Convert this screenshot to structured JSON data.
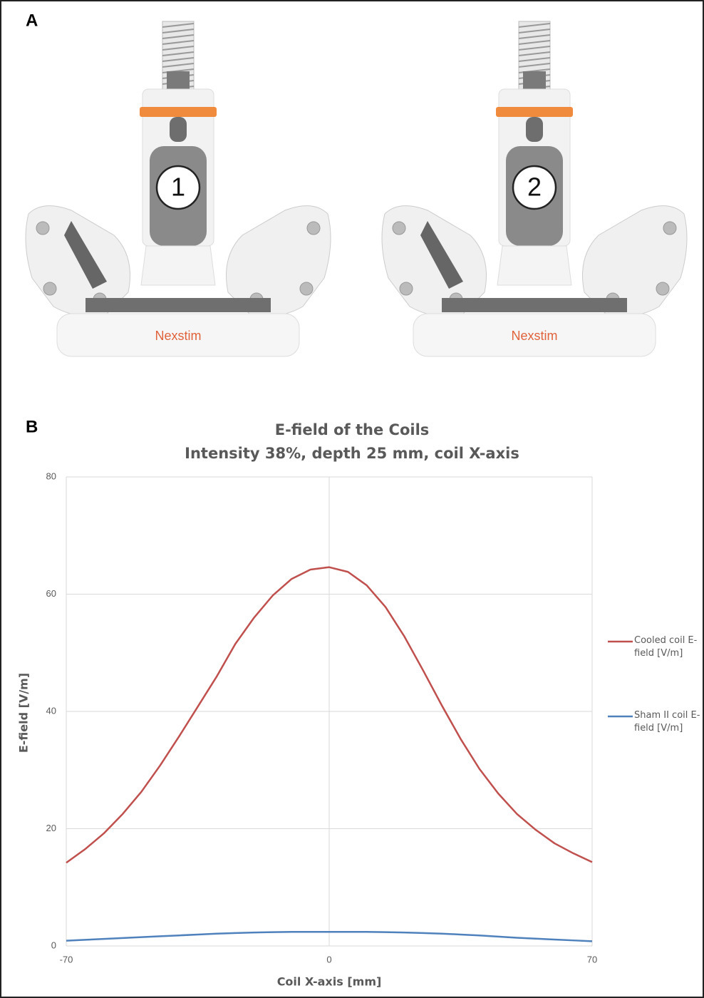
{
  "panel_a": {
    "label": "A",
    "coils": [
      {
        "number": "1",
        "brand": "Nexstim"
      },
      {
        "number": "2",
        "brand": "Nexstim"
      }
    ]
  },
  "panel_b": {
    "label": "B"
  },
  "chart_data": {
    "type": "line",
    "title": "E-field of the Coils",
    "subtitle": "Intensity 38%, depth 25 mm, coil X-axis",
    "x_label": "Coil X-axis [mm]",
    "y_label": "E-field [V/m]",
    "x": [
      -70,
      -65,
      -60,
      -55,
      -50,
      -45,
      -40,
      -35,
      -30,
      -25,
      -20,
      -15,
      -10,
      -5,
      0,
      5,
      10,
      15,
      20,
      25,
      30,
      35,
      40,
      45,
      50,
      55,
      60,
      65,
      70
    ],
    "series": [
      {
        "name": "Cooled coil E-field [V/m]",
        "color": "#c0504d",
        "values": [
          14.2,
          16.5,
          19.2,
          22.5,
          26.3,
          30.8,
          35.7,
          40.8,
          45.9,
          51.5,
          56,
          59.8,
          62.6,
          64.2,
          64.6,
          63.8,
          61.5,
          57.8,
          52.8,
          47,
          41,
          35.3,
          30.2,
          26,
          22.5,
          19.8,
          17.5,
          15.8,
          14.3
        ]
      },
      {
        "name": "Sham II coil E-field [V/m]",
        "color": "#4f81bd",
        "values": [
          0.9,
          1.05,
          1.2,
          1.35,
          1.5,
          1.65,
          1.8,
          1.95,
          2.1,
          2.2,
          2.3,
          2.35,
          2.4,
          2.4,
          2.4,
          2.4,
          2.4,
          2.35,
          2.3,
          2.2,
          2.1,
          1.95,
          1.8,
          1.6,
          1.4,
          1.25,
          1.1,
          0.95,
          0.8
        ]
      }
    ],
    "xlim": [
      -70,
      70
    ],
    "xticks": [
      -70,
      0,
      70
    ],
    "ylim": [
      0,
      80
    ],
    "yticks": [
      0,
      20,
      40,
      60,
      80
    ],
    "grid": true,
    "legend": "right"
  }
}
